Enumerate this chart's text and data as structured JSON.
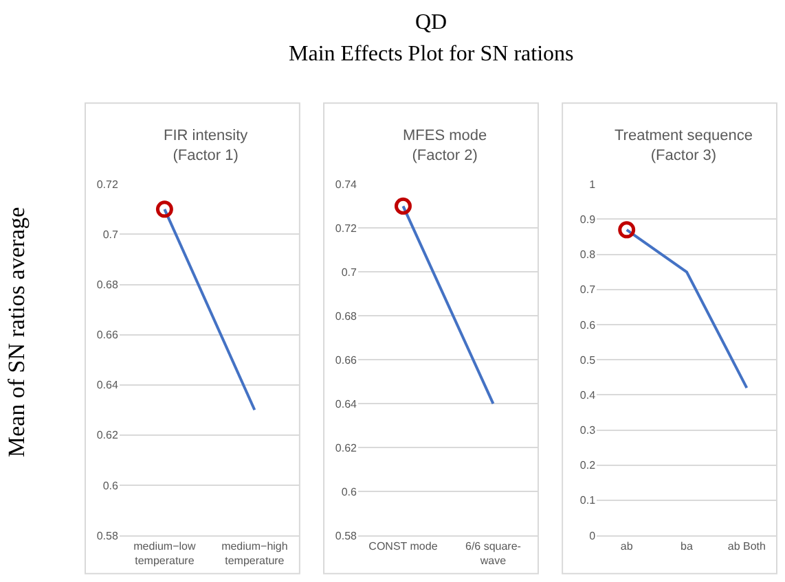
{
  "chart_data": [
    {
      "type": "line",
      "title": "FIR intensity\n(Factor 1)",
      "ylabel": "Mean of SN ratios average",
      "annotations": [
        "QD",
        "Main Effects Plot for SN rations"
      ],
      "categories": [
        "medium−low temperature",
        "medium−high temperature"
      ],
      "series": [
        {
          "color": "#4472c4",
          "values": [
            0.71,
            0.63
          ],
          "marker": "none"
        },
        {
          "type": "scatter",
          "color": "#c00000",
          "x": [
            "medium−low temperature"
          ],
          "values": [
            0.71
          ],
          "marker": "circle"
        }
      ],
      "ylim": [
        0.58,
        0.72
      ],
      "yticks": [
        0.58,
        0.6,
        0.62,
        0.64,
        0.66,
        0.68,
        0.7,
        0.72
      ],
      "grid": "y"
    },
    {
      "type": "line",
      "title": "MFES mode\n(Factor 2)",
      "categories": [
        "CONST mode",
        "6/6 square-wave"
      ],
      "series": [
        {
          "color": "#4472c4",
          "values": [
            0.73,
            0.64
          ],
          "marker": "none"
        },
        {
          "type": "scatter",
          "color": "#c00000",
          "x": [
            "CONST mode"
          ],
          "values": [
            0.73
          ],
          "marker": "circle"
        }
      ],
      "ylim": [
        0.58,
        0.74
      ],
      "yticks": [
        0.58,
        0.6,
        0.62,
        0.64,
        0.66,
        0.68,
        0.7,
        0.72,
        0.74
      ],
      "grid": "y"
    },
    {
      "type": "line",
      "title": "Treatment sequence\n(Factor 3)",
      "categories": [
        "ab",
        "ba",
        "ab Both"
      ],
      "series": [
        {
          "color": "#4472c4",
          "values": [
            0.87,
            0.75,
            0.42
          ],
          "marker": "none"
        },
        {
          "type": "scatter",
          "color": "#c00000",
          "x": [
            "ab"
          ],
          "values": [
            0.87
          ],
          "marker": "circle"
        }
      ],
      "ylim": [
        0,
        1
      ],
      "yticks": [
        0,
        0.1,
        0.2,
        0.3,
        0.4,
        0.5,
        0.6,
        0.7,
        0.8,
        0.9,
        1
      ],
      "grid": "y"
    }
  ]
}
